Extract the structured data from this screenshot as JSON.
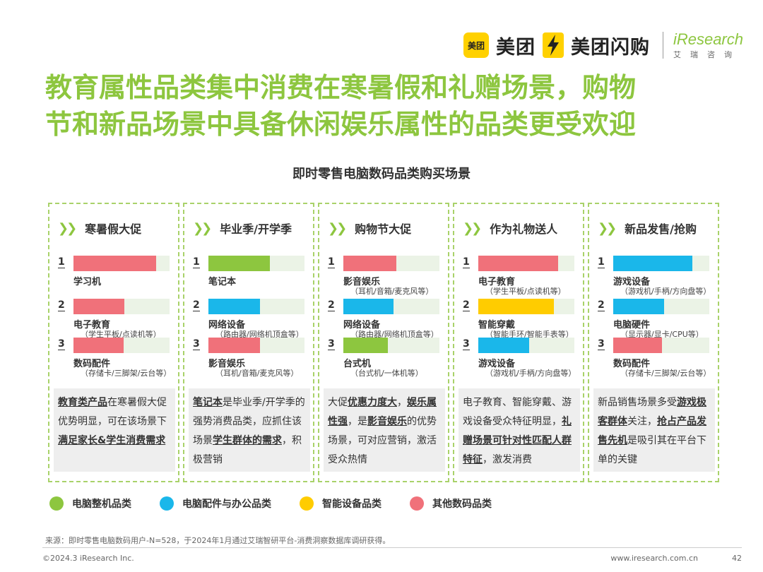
{
  "header": {
    "meituan_badge": "美团",
    "meituan_text": "美团",
    "flash_text": "美团闪购",
    "iresearch_en": "iResearch",
    "iresearch_cn": "艾瑞咨询"
  },
  "title_line1": "教育属性品类集中消费在寒暑假和礼赠场景，购物",
  "title_line2": "节和新品场景中具备休闲娱乐属性的品类更受欢迎",
  "subtitle": "即时零售电脑数码品类购买场景",
  "colors": {
    "green": "#8dc63f",
    "blue": "#1ab7ea",
    "yellow": "#ffcc00",
    "pink": "#f0717a"
  },
  "panels": [
    {
      "title": "寒暑假大促",
      "items": [
        {
          "rank": "1",
          "name": "学习机",
          "sub": "",
          "share": 0.86,
          "color": "pink"
        },
        {
          "rank": "2",
          "name": "电子教育",
          "sub": "（学生平板/点读机等）",
          "share": 0.53,
          "color": "pink"
        },
        {
          "rank": "3",
          "name": "数码配件",
          "sub": "（存储卡/三脚架/云台等）",
          "share": 0.52,
          "color": "pink"
        }
      ],
      "desc": [
        {
          "t": "教育类产品",
          "b": true
        },
        {
          "t": "在寒暑假大促优势明显，可在该场景下",
          "b": false
        },
        {
          "t": "满足家长&学生消费需求",
          "b": true
        }
      ]
    },
    {
      "title": "毕业季/开学季",
      "items": [
        {
          "rank": "1",
          "name": "笔记本",
          "sub": "",
          "share": 0.64,
          "color": "green"
        },
        {
          "rank": "2",
          "name": "网络设备",
          "sub": "（路由器/网络机顶盒等）",
          "share": 0.54,
          "color": "blue"
        },
        {
          "rank": "3",
          "name": "影音娱乐",
          "sub": "（耳机/音箱/麦克风等）",
          "share": 0.54,
          "color": "pink"
        }
      ],
      "desc": [
        {
          "t": "笔记本",
          "b": true
        },
        {
          "t": "是毕业季/开学季的强势消费品类，应抓住该场景",
          "b": false
        },
        {
          "t": "学生群体的需求",
          "b": true
        },
        {
          "t": "，积极营销",
          "b": false
        }
      ]
    },
    {
      "title": "购物节大促",
      "items": [
        {
          "rank": "1",
          "name": "影音娱乐",
          "sub": "（耳机/音箱/麦克风等）",
          "share": 0.55,
          "color": "pink"
        },
        {
          "rank": "2",
          "name": "网络设备",
          "sub": "（路由器/网络机顶盒等）",
          "share": 0.52,
          "color": "blue"
        },
        {
          "rank": "3",
          "name": "台式机",
          "sub": "（台式机/一体机等）",
          "share": 0.46,
          "color": "green"
        }
      ],
      "desc": [
        {
          "t": "大促",
          "b": false
        },
        {
          "t": "优惠力度大",
          "b": true
        },
        {
          "t": "，",
          "b": false
        },
        {
          "t": "娱乐属性强",
          "b": true
        },
        {
          "t": "，是",
          "b": false
        },
        {
          "t": "影音娱乐",
          "b": true
        },
        {
          "t": "的优势场景，可对应营销，激活受众热情",
          "b": false
        }
      ]
    },
    {
      "title": "作为礼物送人",
      "items": [
        {
          "rank": "1",
          "name": "电子教育",
          "sub": "（学生平板/点读机等）",
          "share": 0.83,
          "color": "pink"
        },
        {
          "rank": "2",
          "name": "智能穿戴",
          "sub": "（智能手环/智能手表等）",
          "share": 0.79,
          "color": "yellow"
        },
        {
          "rank": "3",
          "name": "游戏设备",
          "sub": "（游戏机/手柄/方向盘等）",
          "share": 0.53,
          "color": "blue"
        }
      ],
      "desc": [
        {
          "t": "电子教育、智能穿戴、游戏设备受众特征明显，",
          "b": false
        },
        {
          "t": "礼赠场景可针对性匹配人群特征",
          "b": true
        },
        {
          "t": "，激发消费",
          "b": false
        }
      ]
    },
    {
      "title": "新品发售/抢购",
      "items": [
        {
          "rank": "1",
          "name": "游戏设备",
          "sub": "（游戏机/手柄/方向盘等）",
          "share": 0.82,
          "color": "blue"
        },
        {
          "rank": "2",
          "name": "电脑硬件",
          "sub": "（显示器/显卡/CPU等）",
          "share": 0.53,
          "color": "blue"
        },
        {
          "rank": "3",
          "name": "数码配件",
          "sub": "（存储卡/三脚架/云台等）",
          "share": 0.51,
          "color": "pink"
        }
      ],
      "desc": [
        {
          "t": "新品销售场景多受",
          "b": false
        },
        {
          "t": "游戏极客群体",
          "b": true
        },
        {
          "t": "关注，",
          "b": false
        },
        {
          "t": "抢占产品发售先机",
          "b": true
        },
        {
          "t": "是吸引其在平台下单的关键",
          "b": false
        }
      ]
    }
  ],
  "legend": [
    {
      "label": "电脑整机品类",
      "color": "green"
    },
    {
      "label": "电脑配件与办公品类",
      "color": "blue"
    },
    {
      "label": "智能设备品类",
      "color": "yellow"
    },
    {
      "label": "其他数码品类",
      "color": "pink"
    }
  ],
  "source": "来源：即时零售电脑数码用户-N=528，于2024年1月通过艾瑞智研平台-消费洞察数据库调研获得。",
  "footer_left": "©2024.3 iResearch Inc.",
  "footer_right": "www.iresearch.com.cn",
  "page_number": "42"
}
